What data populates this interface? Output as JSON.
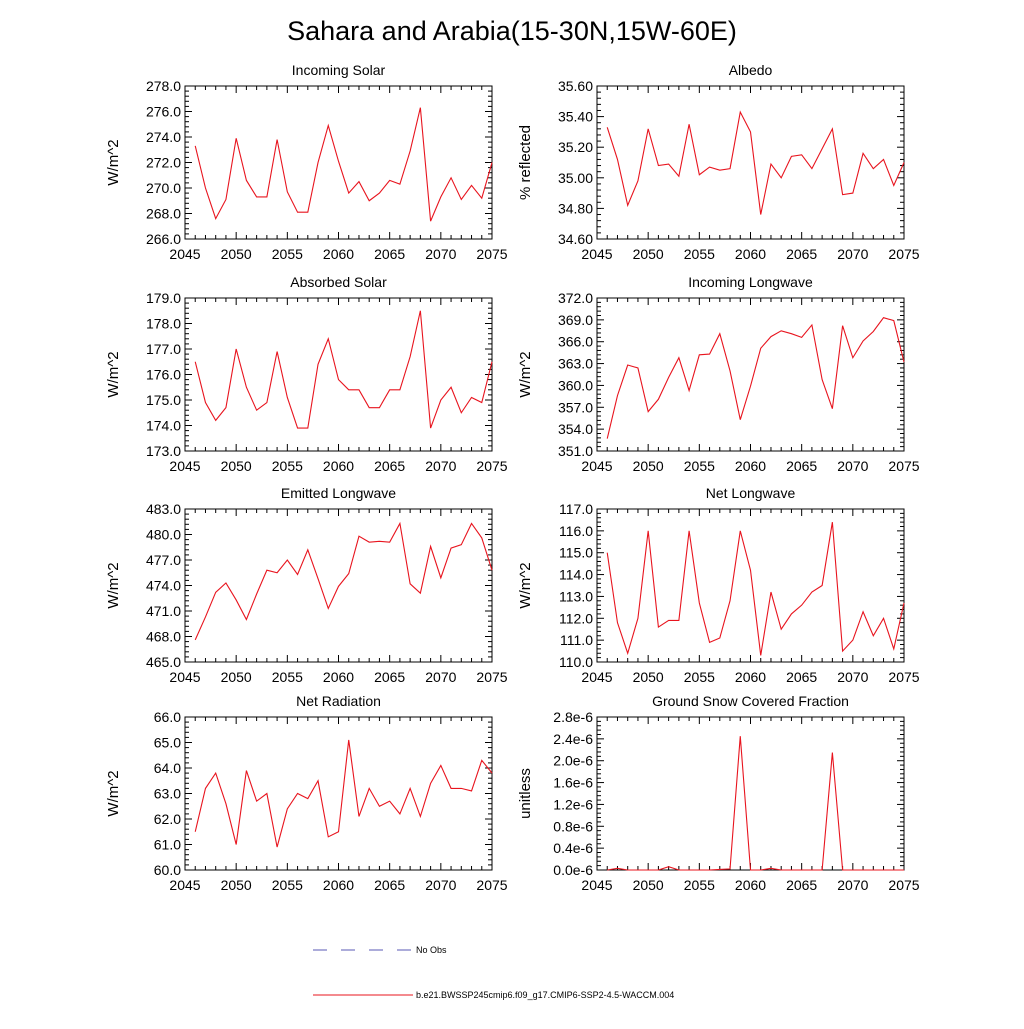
{
  "figure_title": "Sahara and Arabia(15-30N,15W-60E)",
  "legend": {
    "no_obs_label": "No Obs",
    "no_obs_color": "#5a5ab4",
    "model_label": "b.e21.BWSSP245cmip6.f09_g17.CMIP6-SSP2-4.5-WACCM.004",
    "model_color": "#e8141e"
  },
  "chart_data": [
    {
      "type": "line",
      "title": "Incoming Solar",
      "xlabel": "",
      "ylabel": "W/m^2",
      "xlim": [
        2045,
        2075
      ],
      "ylim": [
        266,
        278
      ],
      "yticks": [
        266,
        268,
        270,
        272,
        274,
        276,
        278
      ],
      "ytick_labels": [
        "266.0",
        "268.0",
        "270.0",
        "272.0",
        "274.0",
        "276.0",
        "278.0"
      ],
      "xticks": [
        2045,
        2050,
        2055,
        2060,
        2065,
        2070,
        2075
      ],
      "x": [
        2046,
        2047,
        2048,
        2049,
        2050,
        2051,
        2052,
        2053,
        2054,
        2055,
        2056,
        2057,
        2058,
        2059,
        2060,
        2061,
        2062,
        2063,
        2064,
        2065,
        2066,
        2067,
        2068,
        2069,
        2070,
        2071,
        2072,
        2073,
        2074,
        2075
      ],
      "series": [
        {
          "name": "b.e21.BWSSP245cmip6.f09_g17.CMIP6-SSP2-4.5-WACCM.004",
          "values": [
            273.3,
            270.0,
            267.6,
            269.1,
            273.9,
            270.6,
            269.3,
            269.3,
            273.8,
            269.7,
            268.1,
            268.1,
            272.0,
            274.9,
            272.1,
            269.6,
            270.5,
            269.0,
            269.6,
            270.6,
            270.3,
            272.9,
            276.3,
            267.4,
            269.3,
            270.8,
            269.1,
            270.2,
            269.2,
            272.0
          ]
        }
      ]
    },
    {
      "type": "line",
      "title": "Albedo",
      "xlabel": "",
      "ylabel": "% reflected",
      "xlim": [
        2045,
        2075
      ],
      "ylim": [
        34.6,
        35.6
      ],
      "yticks": [
        34.6,
        34.8,
        35.0,
        35.2,
        35.4,
        35.6
      ],
      "ytick_labels": [
        "34.60",
        "34.80",
        "35.00",
        "35.20",
        "35.40",
        "35.60"
      ],
      "xticks": [
        2045,
        2050,
        2055,
        2060,
        2065,
        2070,
        2075
      ],
      "x": [
        2046,
        2047,
        2048,
        2049,
        2050,
        2051,
        2052,
        2053,
        2054,
        2055,
        2056,
        2057,
        2058,
        2059,
        2060,
        2061,
        2062,
        2063,
        2064,
        2065,
        2066,
        2067,
        2068,
        2069,
        2070,
        2071,
        2072,
        2073,
        2074,
        2075
      ],
      "series": [
        {
          "name": "b.e21.BWSSP245cmip6.f09_g17.CMIP6-SSP2-4.5-WACCM.004",
          "values": [
            35.33,
            35.12,
            34.82,
            34.98,
            35.32,
            35.08,
            35.09,
            35.01,
            35.35,
            35.02,
            35.07,
            35.05,
            35.06,
            35.43,
            35.3,
            34.76,
            35.09,
            35.0,
            35.14,
            35.15,
            35.06,
            35.19,
            35.32,
            34.89,
            34.9,
            35.16,
            35.06,
            35.12,
            34.95,
            35.1
          ]
        }
      ]
    },
    {
      "type": "line",
      "title": "Absorbed Solar",
      "xlabel": "",
      "ylabel": "W/m^2",
      "xlim": [
        2045,
        2075
      ],
      "ylim": [
        173,
        179
      ],
      "yticks": [
        173,
        174,
        175,
        176,
        177,
        178,
        179
      ],
      "ytick_labels": [
        "173.0",
        "174.0",
        "175.0",
        "176.0",
        "177.0",
        "178.0",
        "179.0"
      ],
      "xticks": [
        2045,
        2050,
        2055,
        2060,
        2065,
        2070,
        2075
      ],
      "x": [
        2046,
        2047,
        2048,
        2049,
        2050,
        2051,
        2052,
        2053,
        2054,
        2055,
        2056,
        2057,
        2058,
        2059,
        2060,
        2061,
        2062,
        2063,
        2064,
        2065,
        2066,
        2067,
        2068,
        2069,
        2070,
        2071,
        2072,
        2073,
        2074,
        2075
      ],
      "series": [
        {
          "name": "b.e21.BWSSP245cmip6.f09_g17.CMIP6-SSP2-4.5-WACCM.004",
          "values": [
            176.5,
            174.9,
            174.2,
            174.7,
            177.0,
            175.5,
            174.6,
            174.9,
            176.9,
            175.1,
            173.9,
            173.9,
            176.4,
            177.4,
            175.8,
            175.4,
            175.4,
            174.7,
            174.7,
            175.4,
            175.4,
            176.7,
            178.5,
            173.9,
            175.0,
            175.5,
            174.5,
            175.1,
            174.9,
            176.5
          ]
        }
      ]
    },
    {
      "type": "line",
      "title": "Incoming Longwave",
      "xlabel": "",
      "ylabel": "W/m^2",
      "xlim": [
        2045,
        2075
      ],
      "ylim": [
        351,
        372
      ],
      "yticks": [
        351,
        354,
        357,
        360,
        363,
        366,
        369,
        372
      ],
      "ytick_labels": [
        "351.0",
        "354.0",
        "357.0",
        "360.0",
        "363.0",
        "366.0",
        "369.0",
        "372.0"
      ],
      "xticks": [
        2045,
        2050,
        2055,
        2060,
        2065,
        2070,
        2075
      ],
      "x": [
        2046,
        2047,
        2048,
        2049,
        2050,
        2051,
        2052,
        2053,
        2054,
        2055,
        2056,
        2057,
        2058,
        2059,
        2060,
        2061,
        2062,
        2063,
        2064,
        2065,
        2066,
        2067,
        2068,
        2069,
        2070,
        2071,
        2072,
        2073,
        2074,
        2075
      ],
      "series": [
        {
          "name": "b.e21.BWSSP245cmip6.f09_g17.CMIP6-SSP2-4.5-WACCM.004",
          "values": [
            352.7,
            358.6,
            362.8,
            362.4,
            356.4,
            358.1,
            361.1,
            363.8,
            359.3,
            364.2,
            364.3,
            367.1,
            362.0,
            355.3,
            359.9,
            365.1,
            366.7,
            367.5,
            367.1,
            366.6,
            368.3,
            360.8,
            356.8,
            368.2,
            363.8,
            366.1,
            367.4,
            369.3,
            368.9,
            363.2
          ]
        }
      ]
    },
    {
      "type": "line",
      "title": "Emitted Longwave",
      "xlabel": "",
      "ylabel": "W/m^2",
      "xlim": [
        2045,
        2075
      ],
      "ylim": [
        465,
        483
      ],
      "yticks": [
        465,
        468,
        471,
        474,
        477,
        480,
        483
      ],
      "ytick_labels": [
        "465.0",
        "468.0",
        "471.0",
        "474.0",
        "477.0",
        "480.0",
        "483.0"
      ],
      "xticks": [
        2045,
        2050,
        2055,
        2060,
        2065,
        2070,
        2075
      ],
      "x": [
        2046,
        2047,
        2048,
        2049,
        2050,
        2051,
        2052,
        2053,
        2054,
        2055,
        2056,
        2057,
        2058,
        2059,
        2060,
        2061,
        2062,
        2063,
        2064,
        2065,
        2066,
        2067,
        2068,
        2069,
        2070,
        2071,
        2072,
        2073,
        2074,
        2075
      ],
      "series": [
        {
          "name": "b.e21.BWSSP245cmip6.f09_g17.CMIP6-SSP2-4.5-WACCM.004",
          "values": [
            467.6,
            470.3,
            473.2,
            474.3,
            472.3,
            470.0,
            473.0,
            475.8,
            475.5,
            477.0,
            475.3,
            478.2,
            474.8,
            471.3,
            473.9,
            475.4,
            479.8,
            479.1,
            479.2,
            479.1,
            481.3,
            474.2,
            473.1,
            478.6,
            474.9,
            478.4,
            478.8,
            481.3,
            479.6,
            475.8
          ]
        }
      ]
    },
    {
      "type": "line",
      "title": "Net Longwave",
      "xlabel": "",
      "ylabel": "W/m^2",
      "xlim": [
        2045,
        2075
      ],
      "ylim": [
        110,
        117
      ],
      "yticks": [
        110,
        111,
        112,
        113,
        114,
        115,
        116,
        117
      ],
      "ytick_labels": [
        "110.0",
        "111.0",
        "112.0",
        "113.0",
        "114.0",
        "115.0",
        "116.0",
        "117.0"
      ],
      "xticks": [
        2045,
        2050,
        2055,
        2060,
        2065,
        2070,
        2075
      ],
      "x": [
        2046,
        2047,
        2048,
        2049,
        2050,
        2051,
        2052,
        2053,
        2054,
        2055,
        2056,
        2057,
        2058,
        2059,
        2060,
        2061,
        2062,
        2063,
        2064,
        2065,
        2066,
        2067,
        2068,
        2069,
        2070,
        2071,
        2072,
        2073,
        2074,
        2075
      ],
      "series": [
        {
          "name": "b.e21.BWSSP245cmip6.f09_g17.CMIP6-SSP2-4.5-WACCM.004",
          "values": [
            115.0,
            111.8,
            110.4,
            112.0,
            116.0,
            111.6,
            111.9,
            111.9,
            116.0,
            112.7,
            110.9,
            111.1,
            112.8,
            116.0,
            114.2,
            110.3,
            113.2,
            111.5,
            112.2,
            112.6,
            113.2,
            113.5,
            116.4,
            110.5,
            111.0,
            112.3,
            111.2,
            112.0,
            110.6,
            112.7
          ]
        }
      ]
    },
    {
      "type": "line",
      "title": "Net Radiation",
      "xlabel": "",
      "ylabel": "W/m^2",
      "xlim": [
        2045,
        2075
      ],
      "ylim": [
        60,
        66
      ],
      "yticks": [
        60,
        61,
        62,
        63,
        64,
        65,
        66
      ],
      "ytick_labels": [
        "60.0",
        "61.0",
        "62.0",
        "63.0",
        "64.0",
        "65.0",
        "66.0"
      ],
      "xticks": [
        2045,
        2050,
        2055,
        2060,
        2065,
        2070,
        2075
      ],
      "x": [
        2046,
        2047,
        2048,
        2049,
        2050,
        2051,
        2052,
        2053,
        2054,
        2055,
        2056,
        2057,
        2058,
        2059,
        2060,
        2061,
        2062,
        2063,
        2064,
        2065,
        2066,
        2067,
        2068,
        2069,
        2070,
        2071,
        2072,
        2073,
        2074,
        2075
      ],
      "series": [
        {
          "name": "b.e21.BWSSP245cmip6.f09_g17.CMIP6-SSP2-4.5-WACCM.004",
          "values": [
            61.5,
            63.2,
            63.8,
            62.6,
            61.0,
            63.9,
            62.7,
            63.0,
            60.9,
            62.4,
            63.0,
            62.8,
            63.5,
            61.3,
            61.5,
            65.1,
            62.1,
            63.2,
            62.5,
            62.7,
            62.2,
            63.2,
            62.1,
            63.4,
            64.1,
            63.2,
            63.2,
            63.1,
            64.3,
            63.8
          ]
        }
      ]
    },
    {
      "type": "line",
      "title": "Ground Snow Covered Fraction",
      "xlabel": "",
      "ylabel": "unitless",
      "xlim": [
        2045,
        2075
      ],
      "ylim": [
        0,
        2.8e-06
      ],
      "yticks": [
        0,
        4e-07,
        8e-07,
        1.2e-06,
        1.6e-06,
        2e-06,
        2.4e-06,
        2.8e-06
      ],
      "ytick_labels": [
        "0.0e-6",
        "0.4e-6",
        "0.8e-6",
        "1.2e-6",
        "1.6e-6",
        "2.0e-6",
        "2.4e-6",
        "2.8e-6"
      ],
      "xticks": [
        2045,
        2050,
        2055,
        2060,
        2065,
        2070,
        2075
      ],
      "x": [
        2046,
        2047,
        2048,
        2049,
        2050,
        2051,
        2052,
        2053,
        2054,
        2055,
        2056,
        2057,
        2058,
        2059,
        2060,
        2061,
        2062,
        2063,
        2064,
        2065,
        2066,
        2067,
        2068,
        2069,
        2070,
        2071,
        2072,
        2073,
        2074,
        2075
      ],
      "series": [
        {
          "name": "b.e21.BWSSP245cmip6.f09_g17.CMIP6-SSP2-4.5-WACCM.004",
          "values": [
            0,
            3e-08,
            0,
            0,
            0,
            0,
            6e-08,
            0,
            0,
            0,
            0,
            1e-08,
            2e-08,
            2.45e-06,
            0,
            0,
            3e-08,
            0,
            0,
            0,
            0,
            0,
            2.15e-06,
            0,
            0,
            0,
            0,
            0,
            0,
            0
          ]
        }
      ]
    }
  ]
}
